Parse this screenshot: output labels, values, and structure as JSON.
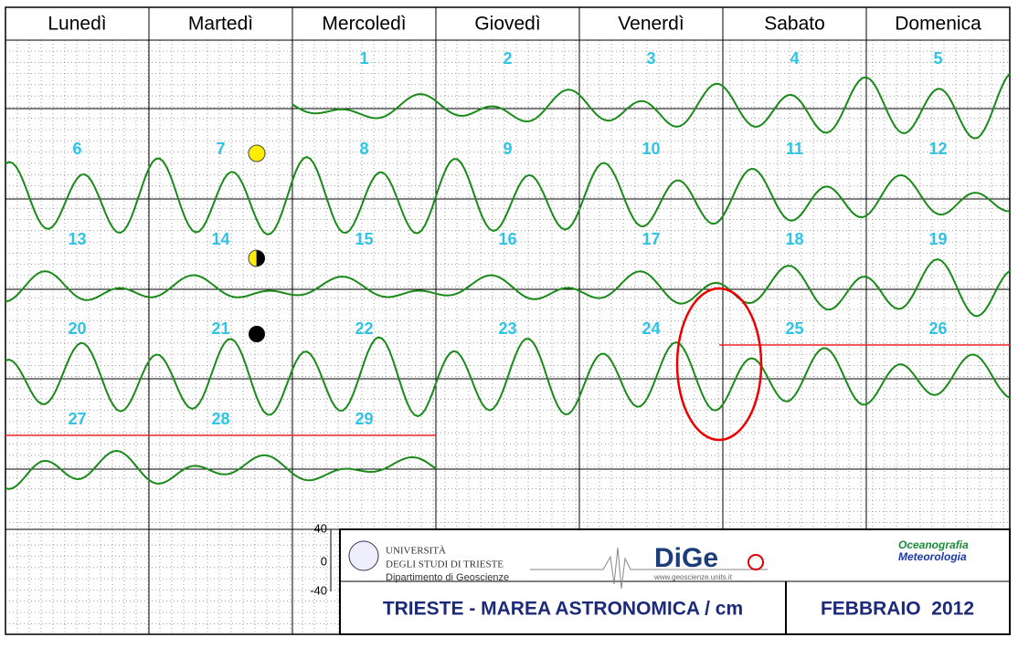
{
  "header": {
    "days": [
      "Lunedì",
      "Martedì",
      "Mercoledì",
      "Giovedì",
      "Venerdì",
      "Sabato",
      "Domenica"
    ]
  },
  "calendar": {
    "weeks": [
      [
        null,
        null,
        "1",
        "2",
        "3",
        "4",
        "5"
      ],
      [
        "6",
        "7",
        "8",
        "9",
        "10",
        "11",
        "12"
      ],
      [
        "13",
        "14",
        "15",
        "16",
        "17",
        "18",
        "19"
      ],
      [
        "20",
        "21",
        "22",
        "23",
        "24",
        "25",
        "26"
      ],
      [
        "27",
        "28",
        "29",
        null,
        null,
        null,
        null
      ]
    ]
  },
  "scale": {
    "labels": [
      "40",
      "0",
      "-40"
    ]
  },
  "footer": {
    "university": "UNIVERSITÀ",
    "university_line2": "DEGLI STUDI DI TRIESTE",
    "department": "Dipartimento di Geoscienze",
    "logo": "DiGe",
    "website": "www.geoscienze.units.it",
    "brand_line1": "Oceanografia",
    "brand_line2": "Meteorologia",
    "title": "TRIESTE - MAREA ASTRONOMICA / cm",
    "month": "FEBBRAIO  2012"
  }
}
